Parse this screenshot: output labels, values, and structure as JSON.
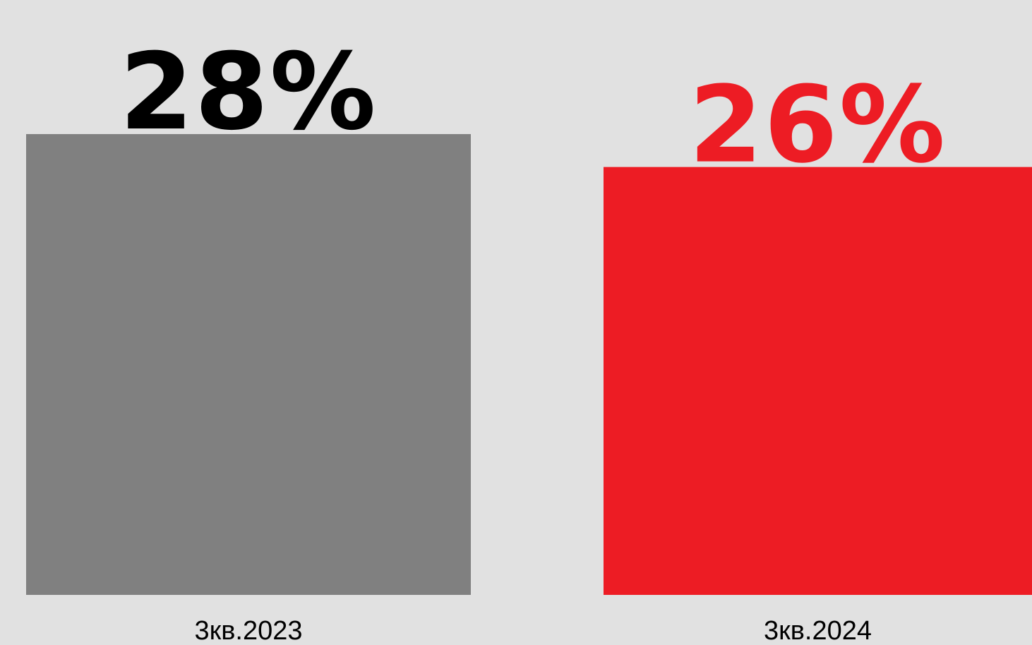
{
  "chart_data": {
    "type": "bar",
    "categories": [
      "3кв.2023",
      "3кв.2024"
    ],
    "values": [
      28,
      26
    ],
    "value_labels": [
      "28%",
      "26%"
    ],
    "bar_colors": [
      "#808080",
      "#ed1c24"
    ],
    "label_colors": [
      "#000000",
      "#ed1c24"
    ],
    "ylim": [
      0,
      28
    ],
    "grid": false,
    "title": "",
    "xlabel": "",
    "ylabel": ""
  }
}
